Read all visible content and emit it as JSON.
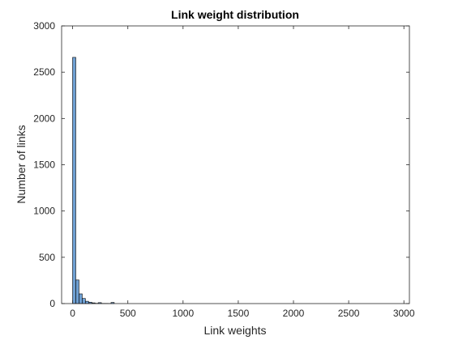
{
  "chart_data": {
    "type": "bar",
    "title": "Link weight distribution",
    "xlabel": "Link weights",
    "ylabel": "Number of links",
    "xlim": [
      -100,
      3050
    ],
    "ylim": [
      0,
      3000
    ],
    "xticks": [
      0,
      500,
      1000,
      1500,
      2000,
      2500,
      3000
    ],
    "yticks": [
      0,
      500,
      1000,
      1500,
      2000,
      2500,
      3000
    ],
    "xtick_labels": [
      "0",
      "500",
      "1000",
      "1500",
      "2000",
      "2500",
      "3000"
    ],
    "ytick_labels": [
      "0",
      "500",
      "1000",
      "1500",
      "2000",
      "2500",
      "3000"
    ],
    "grid": false,
    "bar_color": "#6e9fd2",
    "edge_color": "#000000",
    "bin_edges": [
      -0.5,
      28.5,
      57.5,
      86.5,
      115.5,
      144.5,
      173.5,
      202.5,
      231.5,
      260.5,
      289.5,
      318.5,
      347.5,
      376.5
    ],
    "counts": [
      2660,
      255,
      105,
      55,
      25,
      15,
      8,
      3,
      10,
      2,
      2,
      1,
      12
    ]
  }
}
